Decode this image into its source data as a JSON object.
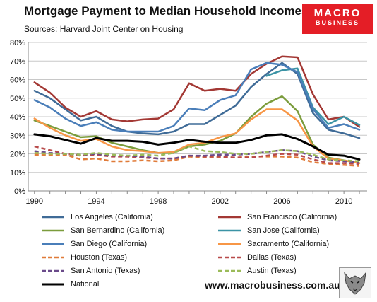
{
  "title": "Mortgage Payment to Median Household Incomes",
  "subtitle": "Sources: Harvard Joint Center on Housing",
  "brand": {
    "line1": "MACRO",
    "line2": "BUSINESS",
    "line3": "",
    "color": "#e41e26"
  },
  "website": "www.macrobusiness.com.au",
  "chart_data": {
    "type": "line",
    "title": "Mortgage Payment to Median Household Incomes",
    "subtitle": "Sources: Harvard Joint Center on Housing",
    "xlabel": "",
    "ylabel": "",
    "x": [
      1990,
      1991,
      1992,
      1993,
      1994,
      1995,
      1996,
      1997,
      1998,
      1999,
      2000,
      2001,
      2002,
      2003,
      2004,
      2005,
      2006,
      2007,
      2008,
      2009,
      2010,
      2011
    ],
    "x_ticks": [
      1990,
      1994,
      1998,
      2002,
      2006,
      2010
    ],
    "x_tick_labels": [
      "1990",
      "1994",
      "1998",
      "2002",
      "2006",
      "2010"
    ],
    "xlim": [
      1989.6,
      2011.5
    ],
    "ylim": [
      0,
      80
    ],
    "y_ticks": [
      0,
      10,
      20,
      30,
      40,
      50,
      60,
      70,
      80
    ],
    "y_tick_labels": [
      "0%",
      "10%",
      "20%",
      "30%",
      "40%",
      "50%",
      "60%",
      "70%",
      "80%"
    ],
    "grid": true,
    "legend": "bottom",
    "series": [
      {
        "name": "Los Angeles (California)",
        "color": "#3f6b97",
        "dash": false,
        "width": 2.5,
        "values": [
          54,
          50,
          44,
          38,
          40,
          35,
          32,
          31,
          30.5,
          32,
          36,
          36,
          41,
          46,
          56,
          63,
          69,
          63,
          42,
          33,
          31,
          28.5
        ]
      },
      {
        "name": "San Francisco (California)",
        "color": "#a33834",
        "dash": false,
        "width": 2.5,
        "values": [
          58.5,
          53,
          45,
          40,
          43,
          38.5,
          37.5,
          38.5,
          39,
          44,
          58,
          54,
          55,
          54,
          63,
          68.5,
          72.5,
          72,
          52,
          38.5,
          40,
          34.5
        ]
      },
      {
        "name": "San Bernardino (California)",
        "color": "#7b9c3c",
        "dash": false,
        "width": 2.5,
        "values": [
          38,
          35,
          32,
          29,
          29.5,
          26,
          24,
          22,
          20.5,
          20.5,
          24,
          25,
          27,
          31,
          40,
          47,
          51,
          43,
          25,
          18,
          16.5,
          15
        ]
      },
      {
        "name": "San Jose (California)",
        "color": "#3b93a5",
        "dash": false,
        "width": 2.5,
        "values": [
          null,
          null,
          null,
          null,
          null,
          null,
          null,
          null,
          null,
          null,
          null,
          null,
          null,
          null,
          null,
          62,
          65,
          66,
          45,
          36,
          40,
          35.5
        ]
      },
      {
        "name": "San Diego (California)",
        "color": "#4a7eb9",
        "dash": false,
        "width": 2.5,
        "values": [
          49,
          45,
          39,
          35,
          37,
          33,
          32,
          32,
          32,
          35,
          44.5,
          43.5,
          49,
          51.5,
          65.5,
          69,
          68,
          64,
          44,
          34,
          36,
          33
        ]
      },
      {
        "name": "Sacramento (California)",
        "color": "#f79646",
        "dash": false,
        "width": 2.5,
        "values": [
          39,
          34,
          30,
          27,
          28,
          24,
          22,
          21.5,
          20.5,
          21,
          25,
          26,
          29,
          31,
          38.5,
          44,
          44,
          38,
          24,
          17.5,
          16.5,
          15
        ]
      },
      {
        "name": "Houston (Texas)",
        "color": "#e07b39",
        "dash": true,
        "width": 2.5,
        "values": [
          19.5,
          19.5,
          19.5,
          17,
          17.5,
          16,
          16,
          16.5,
          16,
          16.5,
          18.5,
          18,
          18,
          18,
          18.5,
          18.5,
          18.5,
          18,
          15.5,
          14.5,
          14,
          13.5
        ]
      },
      {
        "name": "Dallas (Texas)",
        "color": "#b84a4a",
        "dash": true,
        "width": 2.5,
        "values": [
          24,
          22,
          20,
          19,
          19.5,
          18.5,
          18.5,
          18,
          17.5,
          17.5,
          19,
          18.5,
          18.5,
          18,
          18,
          19,
          20,
          19.5,
          17,
          15,
          15,
          14.5
        ]
      },
      {
        "name": "San Antonio (Texas)",
        "color": "#6a4a8a",
        "dash": true,
        "width": 2.5,
        "values": [
          21.5,
          20.5,
          20,
          19.5,
          20,
          19,
          19,
          18.5,
          17.5,
          17.5,
          19,
          19,
          19.5,
          19.5,
          20,
          21,
          22,
          21.5,
          18.5,
          16.5,
          16,
          15.5
        ]
      },
      {
        "name": "Austin (Texas)",
        "color": "#9bbb59",
        "dash": true,
        "width": 2.5,
        "values": [
          20.5,
          20,
          20,
          19.5,
          20.5,
          19.5,
          19,
          19.5,
          19,
          20.5,
          24,
          21.5,
          21,
          20,
          20,
          21,
          22,
          21.5,
          19.5,
          17,
          16.5,
          16
        ]
      },
      {
        "name": "National",
        "color": "#000000",
        "dash": false,
        "width": 3,
        "values": [
          30.5,
          29.5,
          27.5,
          25.5,
          28.5,
          27,
          27,
          26.5,
          25,
          26,
          27.5,
          26.5,
          26,
          26,
          27.5,
          30,
          30.5,
          28,
          24,
          19.5,
          19,
          17
        ]
      }
    ]
  }
}
